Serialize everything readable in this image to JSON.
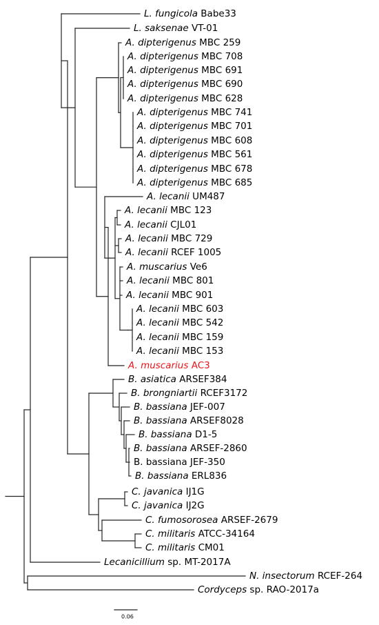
{
  "highlight_color": "#e8161b",
  "branch_color": "#222222",
  "taxa": [
    {
      "id": "lf_babe33",
      "genus": "L. fungicola",
      "suffix": "Babe33",
      "italic_genus": true
    },
    {
      "id": "ls_vt01",
      "genus": "L. saksenae",
      "suffix": "VT-01",
      "italic_genus": true
    },
    {
      "id": "ad_259",
      "genus": "A. dipterigenus",
      "suffix": "MBC 259",
      "italic_genus": true
    },
    {
      "id": "ad_708",
      "genus": "A. dipterigenus",
      "suffix": "MBC 708",
      "italic_genus": true
    },
    {
      "id": "ad_691",
      "genus": "A. dipterigenus",
      "suffix": "MBC 691",
      "italic_genus": true
    },
    {
      "id": "ad_690",
      "genus": "A. dipterigenus",
      "suffix": "MBC 690",
      "italic_genus": true
    },
    {
      "id": "ad_628",
      "genus": "A. dipterigenus",
      "suffix": "MBC 628",
      "italic_genus": true
    },
    {
      "id": "ad_741",
      "genus": "A. dipterigenus",
      "suffix": "MBC 741",
      "italic_genus": true
    },
    {
      "id": "ad_701",
      "genus": "A. dipterigenus",
      "suffix": "MBC 701",
      "italic_genus": true
    },
    {
      "id": "ad_608",
      "genus": "A. dipterigenus",
      "suffix": "MBC 608",
      "italic_genus": true
    },
    {
      "id": "ad_561",
      "genus": "A. dipterigenus",
      "suffix": "MBC 561",
      "italic_genus": true
    },
    {
      "id": "ad_678",
      "genus": "A. dipterigenus",
      "suffix": "MBC 678",
      "italic_genus": true
    },
    {
      "id": "ad_685",
      "genus": "A. dipterigenus",
      "suffix": "MBC 685",
      "italic_genus": true
    },
    {
      "id": "al_um487",
      "genus": "A. lecanii",
      "suffix": "UM487",
      "italic_genus": true
    },
    {
      "id": "al_123",
      "genus": "A. lecanii",
      "suffix": "MBC 123",
      "italic_genus": true
    },
    {
      "id": "al_cjl01",
      "genus": "A. lecanii",
      "suffix": "CJL01",
      "italic_genus": true
    },
    {
      "id": "al_729",
      "genus": "A. lecanii",
      "suffix": "MBC 729",
      "italic_genus": true
    },
    {
      "id": "al_rcef1005",
      "genus": "A. lecanii",
      "suffix": "RCEF 1005",
      "italic_genus": true
    },
    {
      "id": "am_ve6",
      "genus": "A. muscarius",
      "suffix": "Ve6",
      "italic_genus": true
    },
    {
      "id": "al_801",
      "genus": "A. lecanii",
      "suffix": "MBC 801",
      "italic_genus": true
    },
    {
      "id": "al_901",
      "genus": "A. lecanii",
      "suffix": "MBC 901",
      "italic_genus": true
    },
    {
      "id": "al_603",
      "genus": "A. lecanii",
      "suffix": "MBC 603",
      "italic_genus": true
    },
    {
      "id": "al_542",
      "genus": "A. lecanii",
      "suffix": "MBC 542",
      "italic_genus": true
    },
    {
      "id": "al_159",
      "genus": "A. lecanii",
      "suffix": "MBC 159",
      "italic_genus": true
    },
    {
      "id": "al_153",
      "genus": "A. lecanii",
      "suffix": "MBC 153",
      "italic_genus": true
    },
    {
      "id": "am_ac3",
      "genus": "A. muscarius",
      "suffix": "AC3",
      "italic_genus": true,
      "highlight": true
    },
    {
      "id": "ba_arsef384",
      "genus": "B. asiatica",
      "suffix": "ARSEF384",
      "italic_genus": true
    },
    {
      "id": "bb_rcef3172",
      "genus": "B. brongniartii",
      "suffix": "RCEF3172",
      "italic_genus": true
    },
    {
      "id": "bbs_jef007",
      "genus": "B. bassiana",
      "suffix": "JEF-007",
      "italic_genus": true
    },
    {
      "id": "bbs_arsef8028",
      "genus": "B. bassiana",
      "suffix": "ARSEF8028",
      "italic_genus": true
    },
    {
      "id": "bbs_d15",
      "genus": "B. bassiana",
      "suffix": "D1-5",
      "italic_genus": true
    },
    {
      "id": "bbs_arsef2860",
      "genus": "B. bassiana",
      "suffix": "ARSEF-2860",
      "italic_genus": true
    },
    {
      "id": "bbs_jef350",
      "genus": "B. bassiana",
      "suffix": "JEF-350",
      "italic_genus": false
    },
    {
      "id": "bbs_erl836",
      "genus": "B. bassiana",
      "suffix": "ERL836",
      "italic_genus": true
    },
    {
      "id": "cj_ij1g",
      "genus": "C. javanica",
      "suffix": "IJ1G",
      "italic_genus": true
    },
    {
      "id": "cj_ij2g",
      "genus": "C. javanica",
      "suffix": "IJ2G",
      "italic_genus": true
    },
    {
      "id": "cf_arsef2679",
      "genus": "C. fumosorosea",
      "suffix": "ARSEF-2679",
      "italic_genus": true
    },
    {
      "id": "cm_atcc34164",
      "genus": "C. militaris",
      "suffix": "ATCC-34164",
      "italic_genus": true
    },
    {
      "id": "cm_cm01",
      "genus": "C. militaris",
      "suffix": "CM01",
      "italic_genus": true
    },
    {
      "id": "lec_mt2017a",
      "genus": "Lecanicillium",
      "suffix": "sp. MT-2017A",
      "italic_genus": true
    },
    {
      "id": "ni_rcef264",
      "genus": "N. insectorum",
      "suffix": "RCEF-264",
      "italic_genus": true
    },
    {
      "id": "cord_rao2017a",
      "genus": "Cordyceps",
      "suffix": "sp. RAO-2017a",
      "italic_genus": true
    }
  ],
  "scale_bar": {
    "value": "0.06"
  }
}
